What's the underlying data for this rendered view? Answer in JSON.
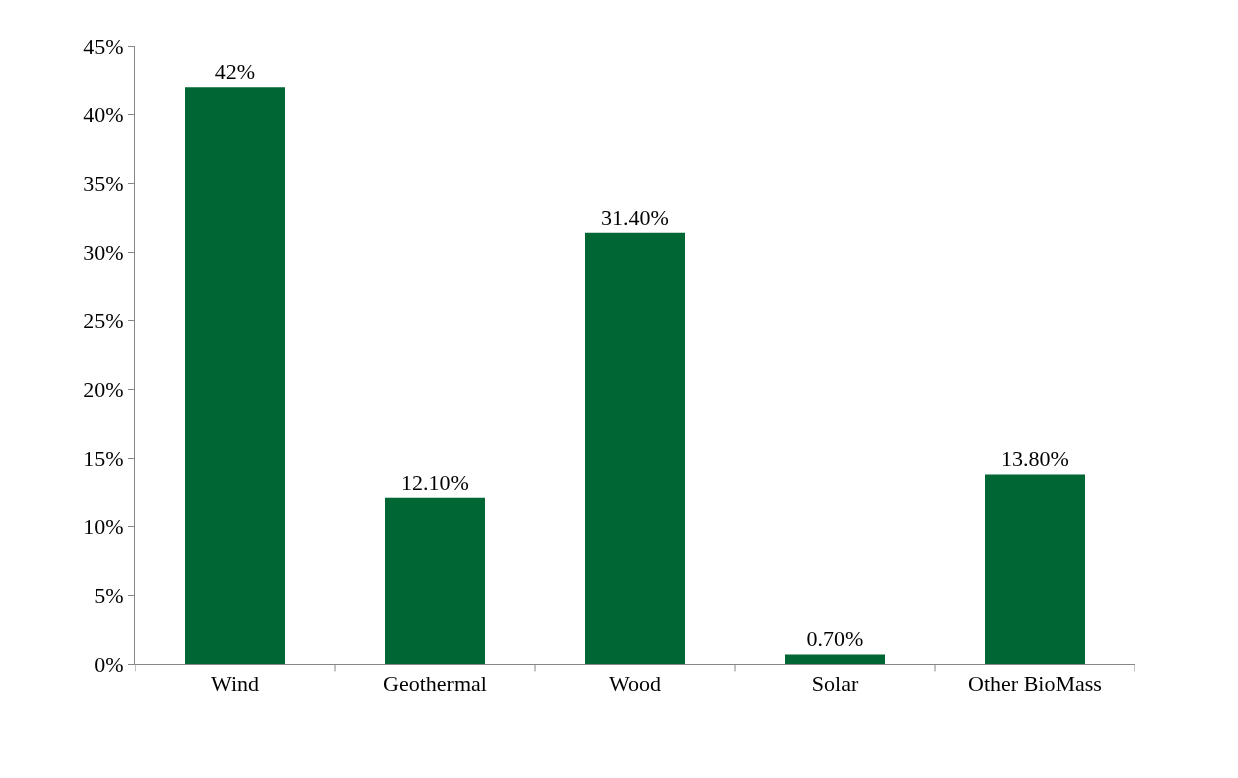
{
  "chart_data": {
    "type": "bar",
    "categories": [
      "Wind",
      "Geothermal",
      "Wood",
      "Solar",
      "Other BioMass"
    ],
    "values": [
      42,
      12.1,
      31.4,
      0.7,
      13.8
    ],
    "value_labels": [
      "42%",
      "12.10%",
      "31.40%",
      "0.70%",
      "13.80%"
    ],
    "color": "#006633",
    "ylim": [
      0,
      45
    ],
    "yticks": [
      {
        "value": 0,
        "label": "0%"
      },
      {
        "value": 5,
        "label": "5%"
      },
      {
        "value": 10,
        "label": "10%"
      },
      {
        "value": 15,
        "label": "15%"
      },
      {
        "value": 20,
        "label": "20%"
      },
      {
        "value": 25,
        "label": "25%"
      },
      {
        "value": 30,
        "label": "30%"
      },
      {
        "value": 35,
        "label": "35%"
      },
      {
        "value": 40,
        "label": "40%"
      },
      {
        "value": 45,
        "label": "45%"
      }
    ]
  }
}
